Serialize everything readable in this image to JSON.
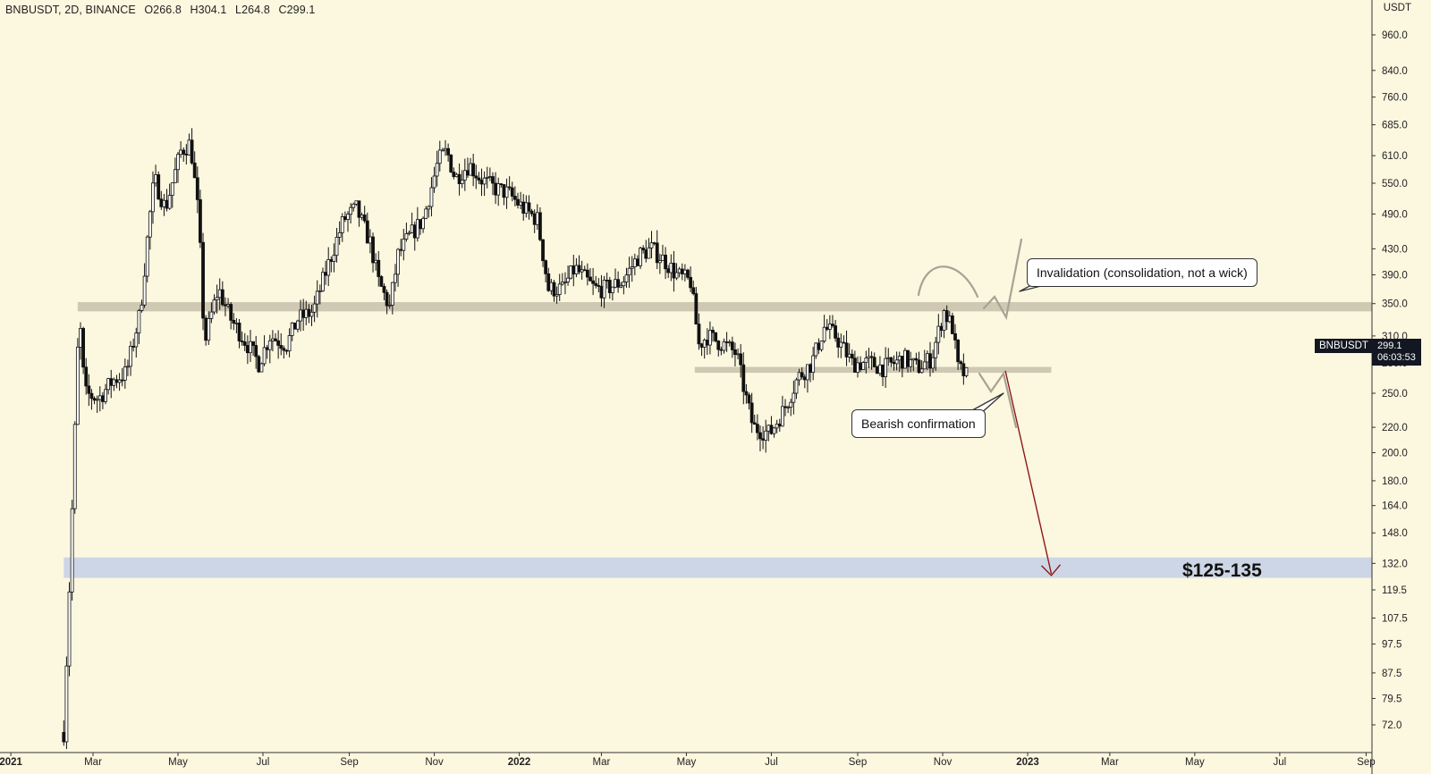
{
  "header": {
    "symbol": "BNBUSDT, 2D, BINANCE",
    "open": "O266.8",
    "high": "H304.1",
    "low": "L264.8",
    "close": "C299.1"
  },
  "price_axis": {
    "unit": "USDT",
    "ticks": [
      "960.0",
      "840.0",
      "760.0",
      "685.0",
      "610.0",
      "550.0",
      "490.0",
      "430.0",
      "390.0",
      "350.0",
      "310.0",
      "280.0",
      "250.0",
      "220.0",
      "200.0",
      "180.0",
      "164.0",
      "148.0",
      "132.0",
      "119.5",
      "107.5",
      "97.5",
      "87.5",
      "79.5",
      "72.0"
    ]
  },
  "time_axis": {
    "ticks": [
      "2021",
      "Mar",
      "May",
      "Jul",
      "Sep",
      "Nov",
      "2022",
      "Mar",
      "May",
      "Jul",
      "Sep",
      "Nov",
      "2023",
      "Mar",
      "May",
      "Jul",
      "Sep"
    ]
  },
  "current_price": {
    "symbol": "BNBUSDT",
    "price": "299.1",
    "countdown": "06:03:53"
  },
  "annotations": {
    "invalidation": "Invalidation (consolidation, not a wick)",
    "bearish": "Bearish confirmation",
    "target": "$125-135"
  },
  "colors": {
    "background": "#fcf7df",
    "zone_gray": "#cfc8b3",
    "zone_blue": "#cdd6e6",
    "candle": "#111111",
    "arrow": "#8b1a1a",
    "sketch": "#a8a293"
  },
  "chart_data": {
    "type": "candlestick",
    "symbol": "BNBUSDT",
    "interval": "2D",
    "exchange": "BINANCE",
    "scale": "log",
    "ylim": [
      68,
      1100
    ],
    "last_candle": {
      "open": 266.8,
      "high": 304.1,
      "low": 264.8,
      "close": 299.1
    },
    "close_path": [
      [
        "2021-02-08",
        70
      ],
      [
        "2021-02-12",
        120
      ],
      [
        "2021-02-19",
        340
      ],
      [
        "2021-02-23",
        250
      ],
      [
        "2021-03-05",
        245
      ],
      [
        "2021-03-15",
        262
      ],
      [
        "2021-03-25",
        270
      ],
      [
        "2021-04-04",
        340
      ],
      [
        "2021-04-10",
        470
      ],
      [
        "2021-04-14",
        560
      ],
      [
        "2021-04-22",
        500
      ],
      [
        "2021-05-03",
        620
      ],
      [
        "2021-05-10",
        640
      ],
      [
        "2021-05-16",
        480
      ],
      [
        "2021-05-20",
        300
      ],
      [
        "2021-05-24",
        330
      ],
      [
        "2021-05-30",
        370
      ],
      [
        "2021-06-08",
        330
      ],
      [
        "2021-06-20",
        300
      ],
      [
        "2021-06-28",
        280
      ],
      [
        "2021-07-06",
        310
      ],
      [
        "2021-07-18",
        300
      ],
      [
        "2021-07-26",
        330
      ],
      [
        "2021-08-06",
        340
      ],
      [
        "2021-08-16",
        400
      ],
      [
        "2021-08-28",
        480
      ],
      [
        "2021-09-06",
        500
      ],
      [
        "2021-09-16",
        440
      ],
      [
        "2021-09-22",
        380
      ],
      [
        "2021-09-30",
        345
      ],
      [
        "2021-10-06",
        420
      ],
      [
        "2021-10-14",
        450
      ],
      [
        "2021-10-24",
        480
      ],
      [
        "2021-11-04",
        600
      ],
      [
        "2021-11-10",
        620
      ],
      [
        "2021-11-16",
        560
      ],
      [
        "2021-11-26",
        590
      ],
      [
        "2021-12-04",
        560
      ],
      [
        "2021-12-14",
        540
      ],
      [
        "2021-12-24",
        530
      ],
      [
        "2022-01-04",
        500
      ],
      [
        "2022-01-14",
        480
      ],
      [
        "2022-01-22",
        370
      ],
      [
        "2022-02-01",
        370
      ],
      [
        "2022-02-10",
        400
      ],
      [
        "2022-02-24",
        370
      ],
      [
        "2022-03-04",
        370
      ],
      [
        "2022-03-16",
        380
      ],
      [
        "2022-03-28",
        420
      ],
      [
        "2022-04-06",
        430
      ],
      [
        "2022-04-16",
        410
      ],
      [
        "2022-04-24",
        390
      ],
      [
        "2022-05-04",
        380
      ],
      [
        "2022-05-10",
        300
      ],
      [
        "2022-05-16",
        310
      ],
      [
        "2022-05-28",
        300
      ],
      [
        "2022-06-06",
        290
      ],
      [
        "2022-06-12",
        250
      ],
      [
        "2022-06-18",
        220
      ],
      [
        "2022-06-30",
        215
      ],
      [
        "2022-07-10",
        235
      ],
      [
        "2022-07-20",
        265
      ],
      [
        "2022-07-30",
        280
      ],
      [
        "2022-08-08",
        320
      ],
      [
        "2022-08-16",
        310
      ],
      [
        "2022-08-28",
        280
      ],
      [
        "2022-09-10",
        280
      ],
      [
        "2022-09-20",
        275
      ],
      [
        "2022-10-04",
        285
      ],
      [
        "2022-10-14",
        275
      ],
      [
        "2022-10-24",
        285
      ],
      [
        "2022-11-02",
        340
      ],
      [
        "2022-11-08",
        320
      ],
      [
        "2022-11-12",
        275
      ],
      [
        "2022-11-18",
        266.8
      ],
      [
        "2022-11-20",
        299.1
      ]
    ],
    "zones": [
      {
        "type": "resistance",
        "price_low": 340,
        "price_high": 352,
        "from": "2021-02-18"
      },
      {
        "type": "support",
        "price_low": 270,
        "price_high": 276,
        "from": "2022-05-07",
        "to": "2023-01-18"
      },
      {
        "type": "target",
        "price_low": 125,
        "price_high": 135,
        "from": "2021-02-08"
      }
    ],
    "projection": {
      "from": [
        "2022-12-16",
        272
      ],
      "to": [
        "2023-01-18",
        127
      ]
    }
  }
}
